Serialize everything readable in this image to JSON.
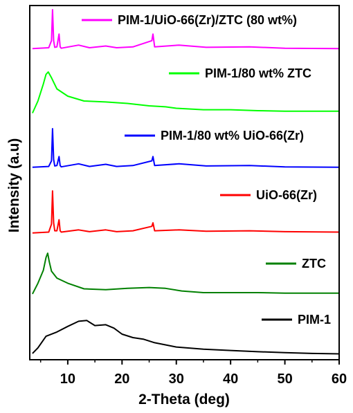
{
  "chart_data": {
    "type": "line",
    "xlabel": "2-Theta (deg)",
    "ylabel": "Intensity (a.u)",
    "xlim": [
      3,
      60
    ],
    "x_ticks": [
      10,
      20,
      30,
      40,
      50,
      60
    ],
    "y_ticks_shown": false,
    "grid": false,
    "legend_placement": "inline, upper-right of each trace",
    "series": [
      {
        "name": "PIM-1/UiO-66(Zr)/ZTC (80 wt%)",
        "color": "#ff00ff",
        "x": [
          3.5,
          6.5,
          7.0,
          7.2,
          7.4,
          7.6,
          8.0,
          8.4,
          8.6,
          8.8,
          12.0,
          14.0,
          17.0,
          19.0,
          22.0,
          25.5,
          25.7,
          26.0,
          30.5,
          35.5,
          43.5,
          50.0,
          60.0
        ],
        "y": [
          0.12,
          0.14,
          0.3,
          1.0,
          0.3,
          0.15,
          0.16,
          0.45,
          0.16,
          0.13,
          0.2,
          0.14,
          0.18,
          0.14,
          0.16,
          0.3,
          0.45,
          0.16,
          0.2,
          0.15,
          0.16,
          0.13,
          0.12
        ]
      },
      {
        "name": "PIM-1/80 wt% ZTC",
        "color": "#00ff00",
        "x": [
          3.5,
          4.5,
          5.5,
          6.0,
          6.4,
          7.0,
          8.0,
          10.0,
          13.0,
          17.0,
          21.0,
          25.0,
          28.0,
          30.0,
          35.0,
          40.0,
          45.0,
          50.0,
          55.0,
          60.0
        ],
        "y": [
          0.05,
          0.3,
          0.65,
          0.85,
          0.9,
          0.78,
          0.55,
          0.4,
          0.3,
          0.28,
          0.25,
          0.2,
          0.18,
          0.15,
          0.12,
          0.12,
          0.1,
          0.09,
          0.09,
          0.09
        ]
      },
      {
        "name": "PIM-1/80 wt% UiO-66(Zr)",
        "color": "#0000ff",
        "x": [
          3.5,
          6.5,
          7.0,
          7.2,
          7.4,
          7.6,
          8.0,
          8.4,
          8.6,
          8.8,
          12.0,
          14.0,
          17.0,
          19.0,
          22.0,
          25.5,
          25.7,
          26.0,
          30.5,
          35.5,
          43.5,
          50.0,
          60.0
        ],
        "y": [
          0.1,
          0.12,
          0.25,
          1.0,
          0.28,
          0.13,
          0.14,
          0.35,
          0.14,
          0.11,
          0.18,
          0.12,
          0.17,
          0.12,
          0.14,
          0.25,
          0.35,
          0.14,
          0.18,
          0.13,
          0.14,
          0.11,
          0.1
        ]
      },
      {
        "name": "UiO-66(Zr)",
        "color": "#ff0000",
        "x": [
          3.5,
          6.5,
          7.0,
          7.2,
          7.4,
          7.6,
          8.0,
          8.4,
          8.6,
          8.8,
          12.0,
          14.0,
          17.0,
          19.0,
          22.0,
          25.5,
          25.7,
          26.0,
          30.5,
          35.5,
          43.5,
          50.0,
          60.0
        ],
        "y": [
          0.05,
          0.07,
          0.25,
          1.0,
          0.28,
          0.1,
          0.1,
          0.35,
          0.1,
          0.07,
          0.12,
          0.08,
          0.12,
          0.08,
          0.1,
          0.2,
          0.28,
          0.1,
          0.12,
          0.09,
          0.1,
          0.08,
          0.07
        ]
      },
      {
        "name": "ZTC",
        "color": "#008000",
        "x": [
          3.5,
          4.5,
          5.5,
          6.0,
          6.3,
          6.6,
          7.0,
          8.0,
          10.0,
          13.0,
          17.0,
          21.0,
          25.0,
          28.0,
          31.0,
          35.0,
          40.0,
          45.0,
          50.0,
          55.0,
          60.0
        ],
        "y": [
          0.05,
          0.3,
          0.6,
          0.9,
          1.0,
          0.8,
          0.58,
          0.42,
          0.3,
          0.17,
          0.15,
          0.18,
          0.2,
          0.18,
          0.12,
          0.08,
          0.08,
          0.08,
          0.07,
          0.07,
          0.07
        ]
      },
      {
        "name": "PIM-1",
        "color": "#000000",
        "x": [
          3.5,
          4.5,
          6.0,
          8.0,
          10.0,
          12.0,
          13.5,
          15.0,
          17.0,
          18.5,
          20.0,
          22.0,
          24.0,
          26.0,
          30.0,
          35.0,
          40.0,
          45.0,
          50.0,
          55.0,
          60.0
        ],
        "y": [
          0.05,
          0.18,
          0.45,
          0.55,
          0.68,
          0.8,
          0.82,
          0.7,
          0.72,
          0.64,
          0.5,
          0.42,
          0.38,
          0.3,
          0.2,
          0.15,
          0.12,
          0.09,
          0.07,
          0.05,
          0.04
        ]
      }
    ]
  }
}
